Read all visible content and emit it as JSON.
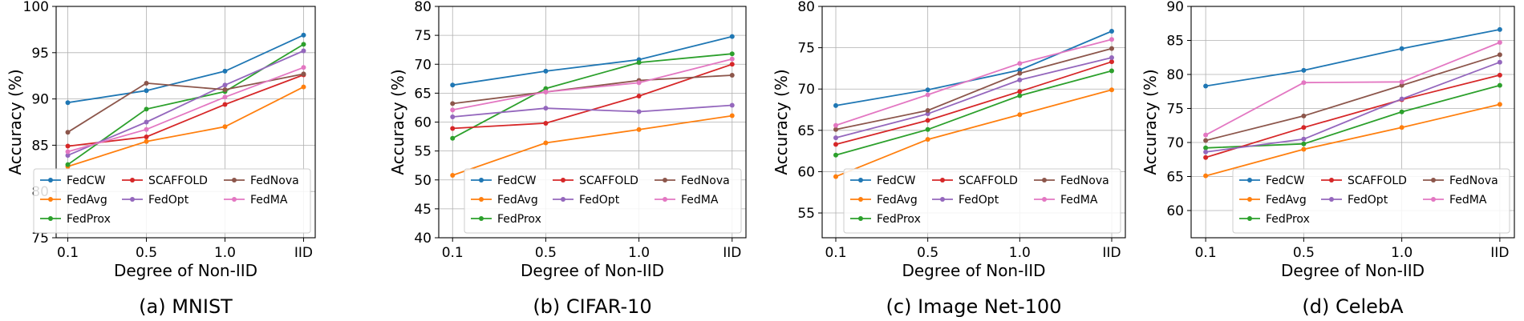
{
  "series_colors": {
    "FedCW": "#1f77b4",
    "FedAvg": "#ff7f0e",
    "FedProx": "#2ca02c",
    "SCAFFOLD": "#d62728",
    "FedOpt": "#9467bd",
    "FedNova": "#8c564b",
    "FedMA": "#e377c2"
  },
  "legend_order": [
    "FedCW",
    "SCAFFOLD",
    "FedNova",
    "FedAvg",
    "FedOpt",
    "FedMA",
    "FedProx"
  ],
  "chart_data": [
    {
      "type": "line",
      "caption": "(a) MNIST",
      "xlabel": "Degree of Non-IID",
      "ylabel": "Accuracy (%)",
      "categories": [
        "0.1",
        "0.5",
        "1.0",
        "IID"
      ],
      "ylim": [
        75,
        100
      ],
      "yticks": [
        75,
        80,
        85,
        90,
        95,
        100
      ],
      "grid": true,
      "legend_placement": "lower-right",
      "series": [
        {
          "name": "FedCW",
          "values": [
            89.6,
            90.9,
            93.0,
            96.9
          ]
        },
        {
          "name": "FedAvg",
          "values": [
            82.7,
            85.4,
            87.0,
            91.3
          ]
        },
        {
          "name": "FedProx",
          "values": [
            82.9,
            88.9,
            90.8,
            95.9
          ]
        },
        {
          "name": "SCAFFOLD",
          "values": [
            84.9,
            85.9,
            89.4,
            92.6
          ]
        },
        {
          "name": "FedOpt",
          "values": [
            83.9,
            87.5,
            91.5,
            95.2
          ]
        },
        {
          "name": "FedNova",
          "values": [
            86.4,
            91.7,
            91.0,
            92.7
          ]
        },
        {
          "name": "FedMA",
          "values": [
            84.3,
            86.7,
            90.2,
            93.4
          ]
        }
      ]
    },
    {
      "type": "line",
      "caption": "(b) CIFAR-10",
      "xlabel": "Degree of Non-IID",
      "ylabel": "Accuracy (%)",
      "categories": [
        "0.1",
        "0.5",
        "1.0",
        "IID"
      ],
      "ylim": [
        40,
        80
      ],
      "yticks": [
        40,
        45,
        50,
        55,
        60,
        65,
        70,
        75,
        80
      ],
      "grid": true,
      "legend_placement": "lower-right",
      "series": [
        {
          "name": "FedCW",
          "values": [
            66.4,
            68.8,
            70.8,
            74.8
          ]
        },
        {
          "name": "FedAvg",
          "values": [
            50.8,
            56.4,
            58.7,
            61.1
          ]
        },
        {
          "name": "FedProx",
          "values": [
            57.2,
            65.8,
            70.3,
            71.8
          ]
        },
        {
          "name": "SCAFFOLD",
          "values": [
            58.9,
            59.8,
            64.5,
            70.0
          ]
        },
        {
          "name": "FedOpt",
          "values": [
            60.9,
            62.4,
            61.8,
            62.9
          ]
        },
        {
          "name": "FedNova",
          "values": [
            63.2,
            65.2,
            67.2,
            68.1
          ]
        },
        {
          "name": "FedMA",
          "values": [
            62.1,
            65.2,
            66.8,
            70.9
          ]
        }
      ]
    },
    {
      "type": "line",
      "caption": "(c) Image Net-100",
      "xlabel": "Degree of Non-IID",
      "ylabel": "Accuracy (%)",
      "categories": [
        "0.1",
        "0.5",
        "1.0",
        "IID"
      ],
      "ylim": [
        52,
        80
      ],
      "yticks": [
        55,
        60,
        65,
        70,
        75,
        80
      ],
      "grid": true,
      "legend_placement": "lower-right",
      "series": [
        {
          "name": "FedCW",
          "values": [
            68.0,
            69.9,
            72.3,
            77.0
          ]
        },
        {
          "name": "FedAvg",
          "values": [
            59.4,
            63.9,
            66.9,
            69.9
          ]
        },
        {
          "name": "FedProx",
          "values": [
            62.0,
            65.1,
            69.2,
            72.2
          ]
        },
        {
          "name": "SCAFFOLD",
          "values": [
            63.3,
            66.2,
            69.7,
            73.3
          ]
        },
        {
          "name": "FedOpt",
          "values": [
            64.1,
            67.0,
            71.1,
            73.8
          ]
        },
        {
          "name": "FedNova",
          "values": [
            65.1,
            67.4,
            71.9,
            74.9
          ]
        },
        {
          "name": "FedMA",
          "values": [
            65.6,
            69.3,
            73.1,
            76.0
          ]
        }
      ]
    },
    {
      "type": "line",
      "caption": "(d) CelebA",
      "xlabel": "Degree of Non-IID",
      "ylabel": "Accuracy (%)",
      "categories": [
        "0.1",
        "0.5",
        "1.0",
        "IID"
      ],
      "ylim": [
        56,
        90
      ],
      "yticks": [
        60,
        65,
        70,
        75,
        80,
        85,
        90
      ],
      "grid": true,
      "legend_placement": "lower-right",
      "series": [
        {
          "name": "FedCW",
          "values": [
            78.3,
            80.6,
            83.8,
            86.6
          ]
        },
        {
          "name": "FedAvg",
          "values": [
            65.1,
            69.0,
            72.2,
            75.6
          ]
        },
        {
          "name": "FedProx",
          "values": [
            69.2,
            69.8,
            74.5,
            78.4
          ]
        },
        {
          "name": "SCAFFOLD",
          "values": [
            67.8,
            72.2,
            76.3,
            79.9
          ]
        },
        {
          "name": "FedOpt",
          "values": [
            68.6,
            70.5,
            76.4,
            81.8
          ]
        },
        {
          "name": "FedNova",
          "values": [
            70.3,
            73.9,
            78.4,
            82.9
          ]
        },
        {
          "name": "FedMA",
          "values": [
            71.1,
            78.8,
            78.9,
            84.7
          ]
        }
      ]
    }
  ]
}
